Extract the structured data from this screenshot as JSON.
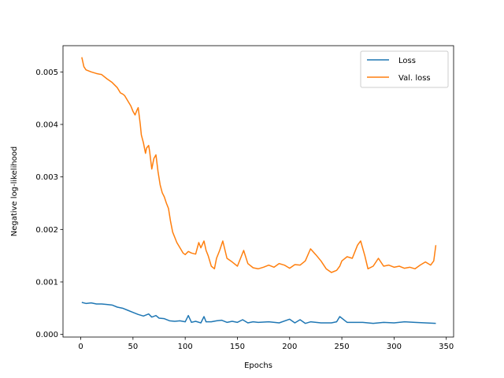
{
  "chart_data": {
    "type": "line",
    "xlabel": "Epochs",
    "ylabel": "Negative log-likelihood",
    "xlim": [
      -17,
      357
    ],
    "ylim": [
      -5e-05,
      0.0055
    ],
    "xticks": [
      0,
      50,
      100,
      150,
      200,
      250,
      300,
      350
    ],
    "xtick_labels": [
      "0",
      "50",
      "100",
      "150",
      "200",
      "250",
      "300",
      "350"
    ],
    "yticks": [
      0.0,
      0.001,
      0.002,
      0.003,
      0.004,
      0.005
    ],
    "ytick_labels": [
      "0.000",
      "0.001",
      "0.002",
      "0.003",
      "0.004",
      "0.005"
    ],
    "grid": false,
    "legend": {
      "position": "upper right",
      "entries": [
        "Loss",
        "Val. loss"
      ]
    },
    "series": [
      {
        "name": "Loss",
        "color": "#1f77b4",
        "x": [
          1,
          5,
          10,
          15,
          20,
          25,
          30,
          35,
          40,
          45,
          50,
          55,
          60,
          65,
          68,
          72,
          75,
          80,
          85,
          90,
          95,
          100,
          103,
          106,
          110,
          115,
          118,
          120,
          125,
          130,
          135,
          140,
          145,
          150,
          155,
          160,
          165,
          170,
          180,
          190,
          200,
          205,
          210,
          215,
          220,
          230,
          240,
          245,
          248,
          255,
          260,
          270,
          280,
          290,
          300,
          310,
          320,
          330,
          340
        ],
        "values": [
          0.00061,
          0.00059,
          0.0006,
          0.00058,
          0.00058,
          0.00057,
          0.00056,
          0.00052,
          0.0005,
          0.00046,
          0.00042,
          0.00038,
          0.00035,
          0.00039,
          0.00033,
          0.00036,
          0.00031,
          0.0003,
          0.00026,
          0.00025,
          0.00026,
          0.00024,
          0.00036,
          0.00023,
          0.00025,
          0.00022,
          0.00034,
          0.00024,
          0.00024,
          0.00026,
          0.00027,
          0.00023,
          0.00025,
          0.00023,
          0.00028,
          0.00022,
          0.00024,
          0.00023,
          0.00024,
          0.00022,
          0.00029,
          0.00022,
          0.00028,
          0.00021,
          0.00024,
          0.00022,
          0.00022,
          0.00024,
          0.00034,
          0.00023,
          0.00023,
          0.00023,
          0.00021,
          0.00023,
          0.00022,
          0.00024,
          0.00023,
          0.00022,
          0.00021
        ]
      },
      {
        "name": "Val. loss",
        "color": "#ff7f0e",
        "x": [
          1,
          3,
          5,
          10,
          15,
          20,
          25,
          30,
          35,
          38,
          40,
          42,
          45,
          48,
          50,
          52,
          54,
          55,
          57,
          58,
          60,
          62,
          63,
          65,
          66,
          68,
          70,
          72,
          74,
          76,
          78,
          80,
          82,
          84,
          86,
          88,
          92,
          95,
          98,
          100,
          103,
          106,
          110,
          113,
          115,
          118,
          120,
          122,
          125,
          128,
          130,
          133,
          136,
          140,
          145,
          150,
          153,
          156,
          160,
          165,
          170,
          175,
          180,
          185,
          190,
          195,
          200,
          205,
          210,
          215,
          220,
          225,
          230,
          235,
          240,
          245,
          248,
          250,
          255,
          260,
          265,
          268,
          272,
          275,
          280,
          285,
          290,
          295,
          300,
          305,
          310,
          315,
          320,
          325,
          330,
          335,
          338,
          340
        ],
        "values": [
          0.00528,
          0.0051,
          0.00504,
          0.005,
          0.00497,
          0.00495,
          0.00487,
          0.0048,
          0.0047,
          0.0046,
          0.00458,
          0.00455,
          0.00445,
          0.00435,
          0.00425,
          0.00418,
          0.00428,
          0.00432,
          0.004,
          0.0038,
          0.00365,
          0.00345,
          0.00355,
          0.0036,
          0.00348,
          0.00315,
          0.00335,
          0.00342,
          0.0031,
          0.00285,
          0.0027,
          0.00262,
          0.0025,
          0.0024,
          0.00215,
          0.00195,
          0.00175,
          0.00165,
          0.00155,
          0.00152,
          0.00158,
          0.00155,
          0.00153,
          0.00175,
          0.00165,
          0.00178,
          0.0016,
          0.0015,
          0.0013,
          0.00125,
          0.00145,
          0.0016,
          0.00178,
          0.00145,
          0.00138,
          0.0013,
          0.00145,
          0.0016,
          0.00135,
          0.00127,
          0.00125,
          0.00128,
          0.00132,
          0.00128,
          0.00135,
          0.00132,
          0.00126,
          0.00133,
          0.00132,
          0.0014,
          0.00163,
          0.00152,
          0.0014,
          0.00125,
          0.00118,
          0.00122,
          0.0013,
          0.0014,
          0.00148,
          0.00145,
          0.0017,
          0.00178,
          0.0015,
          0.00125,
          0.0013,
          0.00145,
          0.0013,
          0.00132,
          0.00128,
          0.0013,
          0.00126,
          0.00128,
          0.00125,
          0.00132,
          0.00138,
          0.00132,
          0.0014,
          0.0017
        ]
      }
    ]
  }
}
